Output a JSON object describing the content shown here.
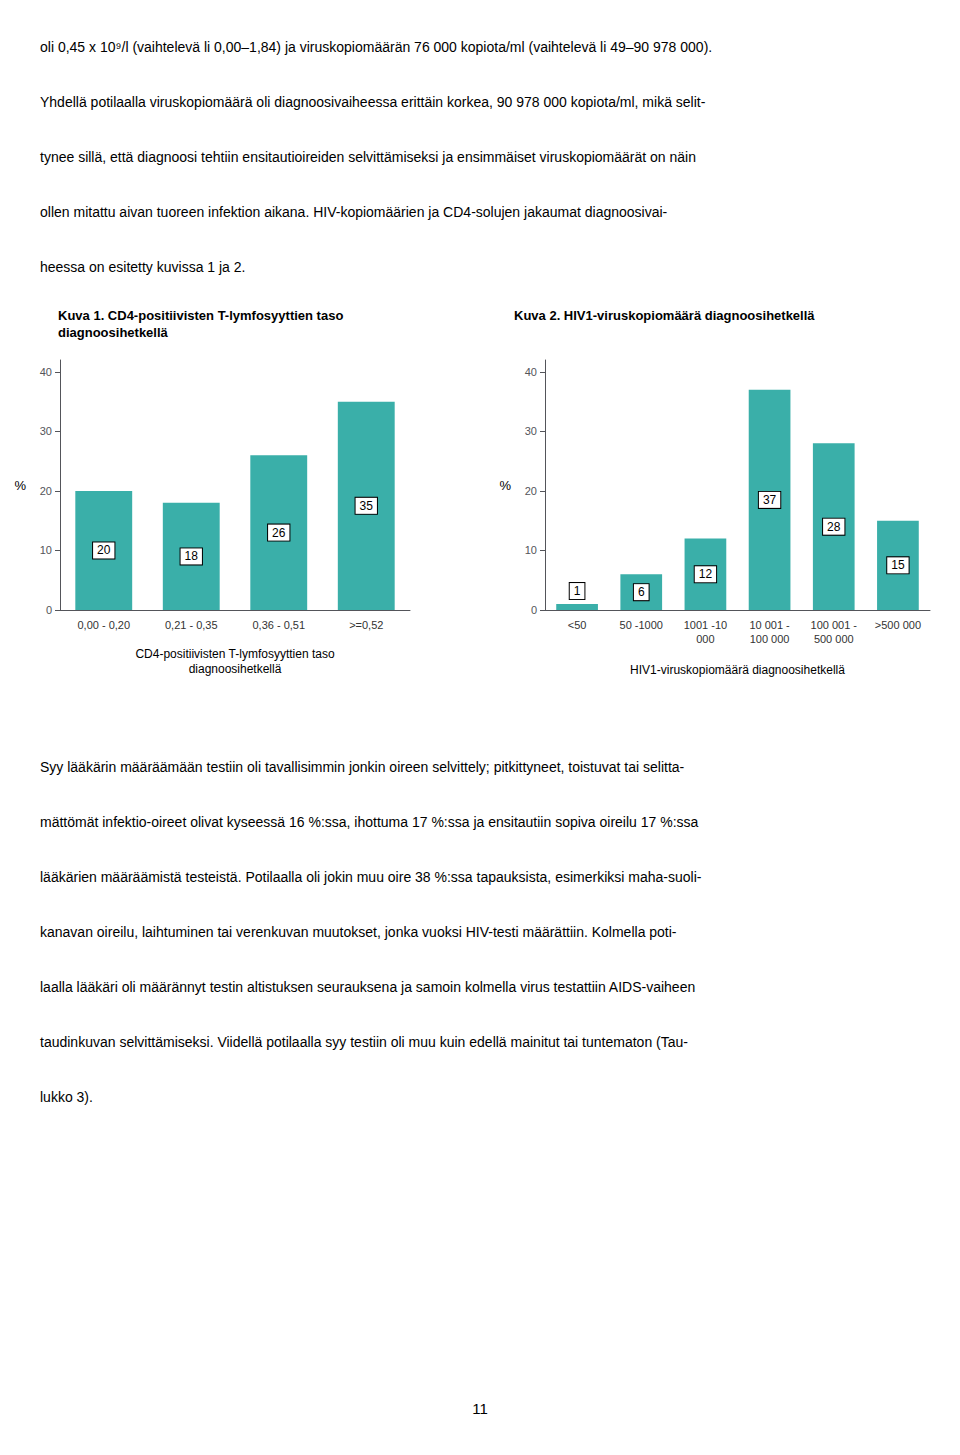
{
  "chart_data": [
    {
      "type": "bar",
      "title": "Kuva 1. CD4-positiivisten T-lymfosyyttien taso\ndiagnoosihetkellä",
      "xlabel": "CD4-positiivisten T-lymfosyyttien taso\ndiagnoosihetkellä",
      "ylabel": "%",
      "categories": [
        "0,00 - 0,20",
        "0,21 - 0,35",
        "0,36 - 0,51",
        ">=0,52"
      ],
      "values": [
        20,
        18,
        26,
        35
      ],
      "color": "#3AAFA9",
      "ylim": [
        0,
        42
      ],
      "yticks": [
        0,
        10,
        20,
        30,
        40
      ],
      "grid": false,
      "data_labels": true
    },
    {
      "type": "bar",
      "title": "Kuva 2. HIV1-viruskopiomäärä diagnoosihetkellä",
      "xlabel": "HIV1-viruskopiomäärä diagnoosihetkellä",
      "ylabel": "%",
      "categories": [
        "<50",
        "50 -1000",
        "1001 -10\n000",
        "10 001 -\n100 000",
        "100 001 -\n500 000",
        ">500 000"
      ],
      "values": [
        1,
        6,
        12,
        37,
        28,
        15
      ],
      "color": "#3AAFA9",
      "ylim": [
        0,
        42
      ],
      "yticks": [
        0,
        10,
        20,
        30,
        40
      ],
      "grid": false,
      "data_labels": true
    }
  ],
  "header_lines": [
    "oli 0,45 x 10⁹/l (vaihtelevä li 0,00–1,84) ja viruskopiomäärän 76 000 kopiota/ml (vaihtelevä li 49–90 978 000).",
    "Yhdellä potilaalla viruskopiomäärä oli diagnoosivaiheessa erittäin korkea, 90 978 000 kopiota/ml, mikä selit-",
    "tynee sillä, että diagnoosi tehtiin ensitautioireiden selvittämiseksi ja ensimmäiset viruskopiomäärät on näin",
    "ollen mitattu aivan tuoreen infektion aikana. HIV-kopiomäärien ja CD4-solujen jakaumat diagnoosivai-",
    "heessa on esitetty kuvissa 1 ja 2."
  ],
  "footer_lines": [
    "Syy lääkärin määräämään testiin oli tavallisimmin jonkin oireen selvittely; pitkittyneet, toistuvat tai selitta-",
    "mättömät infektio-oireet olivat kyseessä 16 %:ssa, ihottuma 17 %:ssa ja ensitautiin sopiva oireilu 17 %:ssa",
    "lääkärien määräämistä testeistä. Potilaalla oli jokin muu oire 38 %:ssa tapauksista, esimerkiksi maha-suoli-",
    "kanavan oireilu, laihtuminen tai verenkuvan muutokset, jonka vuoksi HIV-testi määrättiin. Kolmella poti-",
    "laalla lääkäri oli määrännyt testin altistuksen seurauksena ja samoin kolmella virus testattiin AIDS-vaiheen",
    "taudinkuvan selvittämiseksi. Viidellä potilaalla syy testiin oli muu kuin edellä mainitut tai tuntematon (Tau-",
    "lukko 3)."
  ],
  "page_number": "11"
}
